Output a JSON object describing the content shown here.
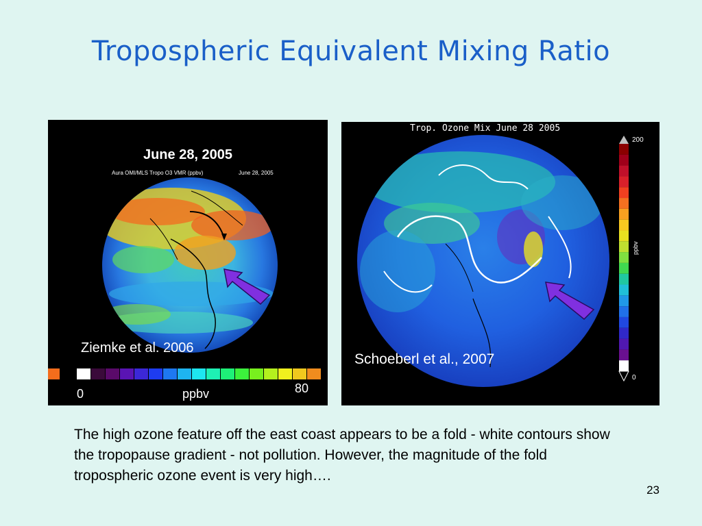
{
  "slide": {
    "title": "Tropospheric Equivalent Mixing Ratio",
    "caption": "The high ozone feature off the east coast appears to be a fold - white contours show the tropopause gradient - not pollution.  However, the magnitude of the fold tropospheric ozone event is very high….",
    "slide_number": "23"
  },
  "left_panel": {
    "heading": "June 28, 2005",
    "subheading": "Aura OMI/MLS Tropo O3 VMR (ppbv)",
    "subheading_date": "June 28, 2005",
    "credit": "Ziemke et al. 2006",
    "colorbar": {
      "min_label": "0",
      "unit_label": "ppbv",
      "max_label": "80",
      "colors": [
        "#ffffff",
        "#3a0a3a",
        "#5a0a6a",
        "#5a14b4",
        "#3c28d8",
        "#1e3cf0",
        "#1e78f0",
        "#1eb4f0",
        "#1ee6f0",
        "#1ef0b4",
        "#1ef078",
        "#3cf03c",
        "#78f01e",
        "#b4f01e",
        "#f0f01e",
        "#f0c81e",
        "#f08c1e"
      ]
    }
  },
  "right_panel": {
    "heading": "Trop. Ozone Mix June 28  2005",
    "credit": "Schoeberl et al., 2007",
    "colorbar": {
      "max_label": "200",
      "min_label": "0",
      "unit_label": "ppbv",
      "colors": [
        "#8b0000",
        "#a0001a",
        "#c0102a",
        "#d8202a",
        "#f04020",
        "#f47020",
        "#f8a020",
        "#f8c820",
        "#e8e020",
        "#c0e030",
        "#80e040",
        "#40d850",
        "#20c8a0",
        "#20c0d8",
        "#2098e8",
        "#2070e8",
        "#2048e0",
        "#3028c8",
        "#5018b0",
        "#6a1090",
        "#ffffff"
      ]
    }
  }
}
